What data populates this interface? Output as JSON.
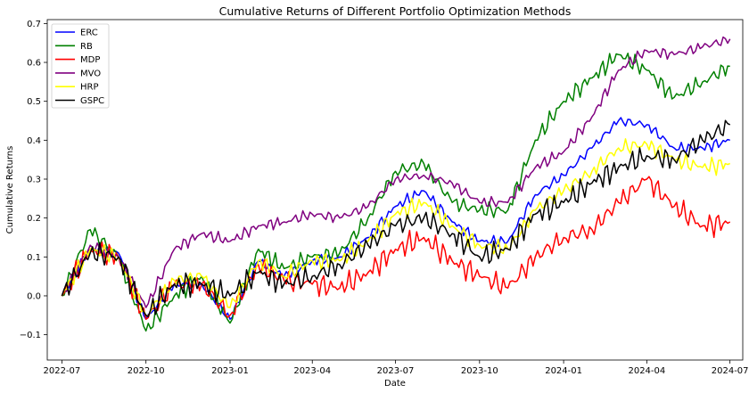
{
  "chart_data": {
    "type": "line",
    "title": "Cumulative Returns of Different Portfolio Optimization Methods",
    "xlabel": "Date",
    "ylabel": "Cumulative Returns",
    "xlim": [
      "2022-06-15",
      "2024-07-15"
    ],
    "ylim": [
      -0.165,
      0.71
    ],
    "legend_position": "upper-left",
    "x_ticks": [
      {
        "date": "2022-07-01",
        "label": "2022-07"
      },
      {
        "date": "2022-10-01",
        "label": "2022-10"
      },
      {
        "date": "2023-01-01",
        "label": "2023-01"
      },
      {
        "date": "2023-04-01",
        "label": "2023-04"
      },
      {
        "date": "2023-07-01",
        "label": "2023-07"
      },
      {
        "date": "2023-10-01",
        "label": "2023-10"
      },
      {
        "date": "2024-01-01",
        "label": "2024-01"
      },
      {
        "date": "2024-04-01",
        "label": "2024-04"
      },
      {
        "date": "2024-07-01",
        "label": "2024-07"
      }
    ],
    "y_ticks": [
      {
        "value": -0.1,
        "label": "−0.1"
      },
      {
        "value": 0.0,
        "label": "0.0"
      },
      {
        "value": 0.1,
        "label": "0.1"
      },
      {
        "value": 0.2,
        "label": "0.2"
      },
      {
        "value": 0.3,
        "label": "0.3"
      },
      {
        "value": 0.4,
        "label": "0.4"
      },
      {
        "value": 0.5,
        "label": "0.5"
      },
      {
        "value": 0.6,
        "label": "0.6"
      },
      {
        "value": 0.7,
        "label": "0.7"
      }
    ],
    "x": [
      "2022-07-01",
      "2022-08-01",
      "2022-09-01",
      "2022-10-01",
      "2022-11-01",
      "2022-12-01",
      "2023-01-01",
      "2023-02-01",
      "2023-03-01",
      "2023-04-01",
      "2023-05-01",
      "2023-06-01",
      "2023-07-01",
      "2023-08-01",
      "2023-09-01",
      "2023-10-01",
      "2023-11-01",
      "2023-12-01",
      "2024-01-01",
      "2024-02-01",
      "2024-03-01",
      "2024-04-01",
      "2024-05-01",
      "2024-06-01",
      "2024-07-01"
    ],
    "series": [
      {
        "name": "ERC",
        "color": "#0000ff",
        "values": [
          0.0,
          0.12,
          0.11,
          -0.06,
          0.03,
          0.03,
          -0.06,
          0.09,
          0.05,
          0.09,
          0.1,
          0.15,
          0.23,
          0.27,
          0.19,
          0.14,
          0.14,
          0.26,
          0.31,
          0.38,
          0.45,
          0.44,
          0.38,
          0.38,
          0.4
        ]
      },
      {
        "name": "RB",
        "color": "#008000",
        "values": [
          0.0,
          0.17,
          0.1,
          -0.09,
          0.0,
          0.05,
          -0.07,
          0.12,
          0.07,
          0.1,
          0.11,
          0.2,
          0.32,
          0.34,
          0.24,
          0.22,
          0.22,
          0.4,
          0.5,
          0.56,
          0.62,
          0.58,
          0.51,
          0.55,
          0.59
        ]
      },
      {
        "name": "MDP",
        "color": "#ff0000",
        "values": [
          0.0,
          0.12,
          0.1,
          -0.06,
          0.03,
          0.03,
          -0.05,
          0.08,
          0.04,
          0.03,
          0.02,
          0.06,
          0.12,
          0.15,
          0.09,
          0.05,
          0.02,
          0.1,
          0.15,
          0.17,
          0.24,
          0.3,
          0.23,
          0.18,
          0.19
        ]
      },
      {
        "name": "MVO",
        "color": "#800080",
        "values": [
          0.0,
          0.13,
          0.1,
          -0.03,
          0.12,
          0.16,
          0.14,
          0.18,
          0.19,
          0.21,
          0.2,
          0.23,
          0.3,
          0.31,
          0.29,
          0.24,
          0.24,
          0.33,
          0.37,
          0.46,
          0.58,
          0.63,
          0.62,
          0.64,
          0.66
        ]
      },
      {
        "name": "HRP",
        "color": "#ffff00",
        "values": [
          0.0,
          0.12,
          0.1,
          -0.05,
          0.04,
          0.05,
          -0.03,
          0.09,
          0.05,
          0.09,
          0.09,
          0.14,
          0.21,
          0.24,
          0.18,
          0.13,
          0.12,
          0.22,
          0.27,
          0.32,
          0.38,
          0.39,
          0.35,
          0.33,
          0.34
        ]
      },
      {
        "name": "GSPC",
        "color": "#000000",
        "values": [
          0.0,
          0.11,
          0.1,
          -0.05,
          0.03,
          0.03,
          0.0,
          0.06,
          0.03,
          0.05,
          0.08,
          0.13,
          0.18,
          0.2,
          0.16,
          0.1,
          0.12,
          0.21,
          0.24,
          0.29,
          0.33,
          0.36,
          0.35,
          0.4,
          0.44
        ]
      }
    ]
  }
}
